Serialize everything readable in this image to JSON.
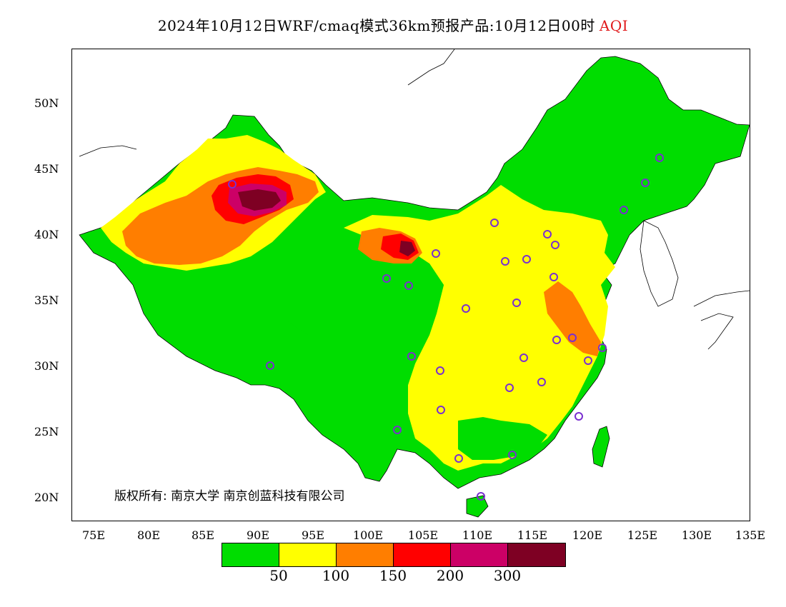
{
  "title": {
    "main": "2024年10月12日WRF/cmaq模式36km预报产品:10月12日00时",
    "pollutant": "AQI"
  },
  "axes": {
    "lat_labels": [
      "50N",
      "45N",
      "40N",
      "35N",
      "30N",
      "25N",
      "20N"
    ],
    "lon_labels": [
      "75E",
      "80E",
      "85E",
      "90E",
      "95E",
      "100E",
      "105E",
      "110E",
      "115E",
      "120E",
      "125E",
      "130E",
      "135E"
    ]
  },
  "copyright": "版权所有: 南京大学  南京创蓝科技有限公司",
  "legend": {
    "colors": [
      "#00dd00",
      "#ffff00",
      "#ff7e00",
      "#ff0000",
      "#cc0066",
      "#7e0023"
    ],
    "ticks": [
      "50",
      "100",
      "150",
      "200",
      "300"
    ]
  },
  "colors": {
    "good": "#00dd00",
    "moderate": "#ffff00",
    "usg": "#ff7e00",
    "unhealthy": "#ff0000",
    "very_unhealthy": "#cc0066",
    "hazardous": "#7e0023",
    "station_marker": "#7a2fd0"
  }
}
